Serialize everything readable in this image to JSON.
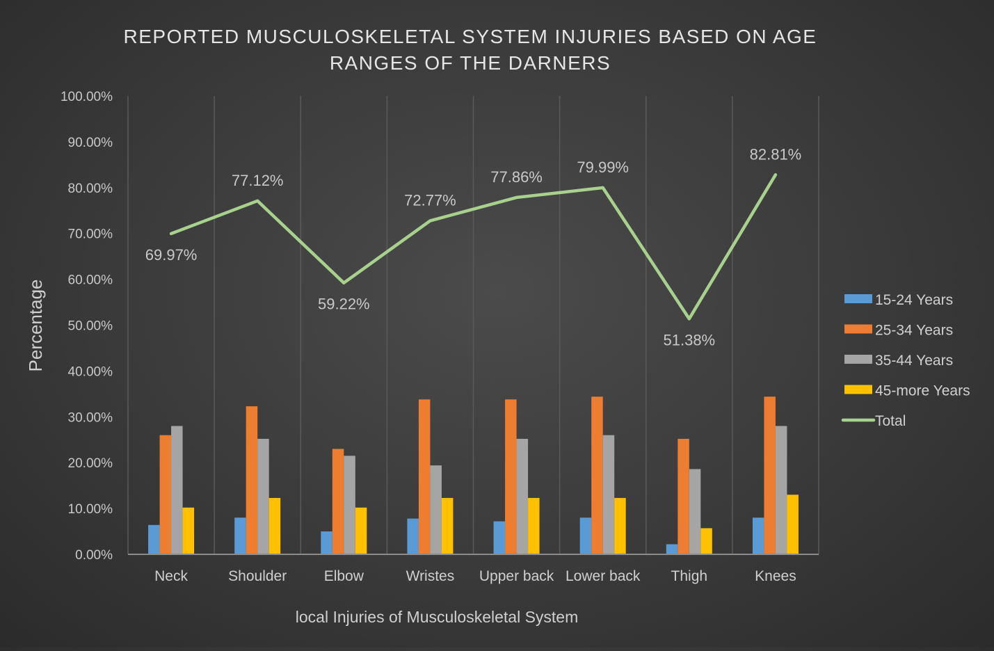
{
  "chart_data": {
    "type": "bar",
    "title": "REPORTED MUSCULOSKELETAL SYSTEM INJURIES BASED ON AGE RANGES OF THE DARNERS",
    "title_lines": [
      "REPORTED MUSCULOSKELETAL SYSTEM INJURIES BASED ON AGE",
      "RANGES OF THE DARNERS"
    ],
    "xlabel": "local Injuries of Musculoskeletal System",
    "ylabel": "Percentage",
    "ylim": [
      0,
      100
    ],
    "yticks": [
      "0.00%",
      "10.00%",
      "20.00%",
      "30.00%",
      "40.00%",
      "50.00%",
      "60.00%",
      "70.00%",
      "80.00%",
      "90.00%",
      "100.00%"
    ],
    "grid": "vertical",
    "legend_position": "right",
    "categories": [
      "Neck",
      "Shoulder",
      "Elbow",
      "Wristes",
      "Upper back",
      "Lower back",
      "Thigh",
      "Knees"
    ],
    "series": [
      {
        "name": "15-24 Years",
        "kind": "bar",
        "color": "#5b9bd5",
        "values": [
          6.4,
          8.0,
          5.0,
          7.8,
          7.2,
          8.0,
          2.2,
          8.0
        ]
      },
      {
        "name": "25-34 Years",
        "kind": "bar",
        "color": "#ed7d31",
        "values": [
          26.0,
          32.3,
          23.0,
          33.8,
          33.8,
          34.4,
          25.2,
          34.4
        ]
      },
      {
        "name": "35-44 Years",
        "kind": "bar",
        "color": "#a5a5a5",
        "values": [
          28.0,
          25.2,
          21.5,
          19.4,
          25.2,
          26.0,
          18.6,
          28.0
        ]
      },
      {
        "name": "45-more Years",
        "kind": "bar",
        "color": "#ffc000",
        "values": [
          10.2,
          12.3,
          10.2,
          12.3,
          12.3,
          12.3,
          5.7,
          13.0
        ]
      },
      {
        "name": "Total",
        "kind": "line",
        "color": "#a9d18e",
        "values": [
          69.97,
          77.12,
          59.22,
          72.77,
          77.86,
          79.99,
          51.38,
          82.81
        ],
        "labels": [
          "69.97%",
          "77.12%",
          "59.22%",
          "72.77%",
          "77.86%",
          "79.99%",
          "51.38%",
          "82.81%"
        ]
      }
    ]
  }
}
